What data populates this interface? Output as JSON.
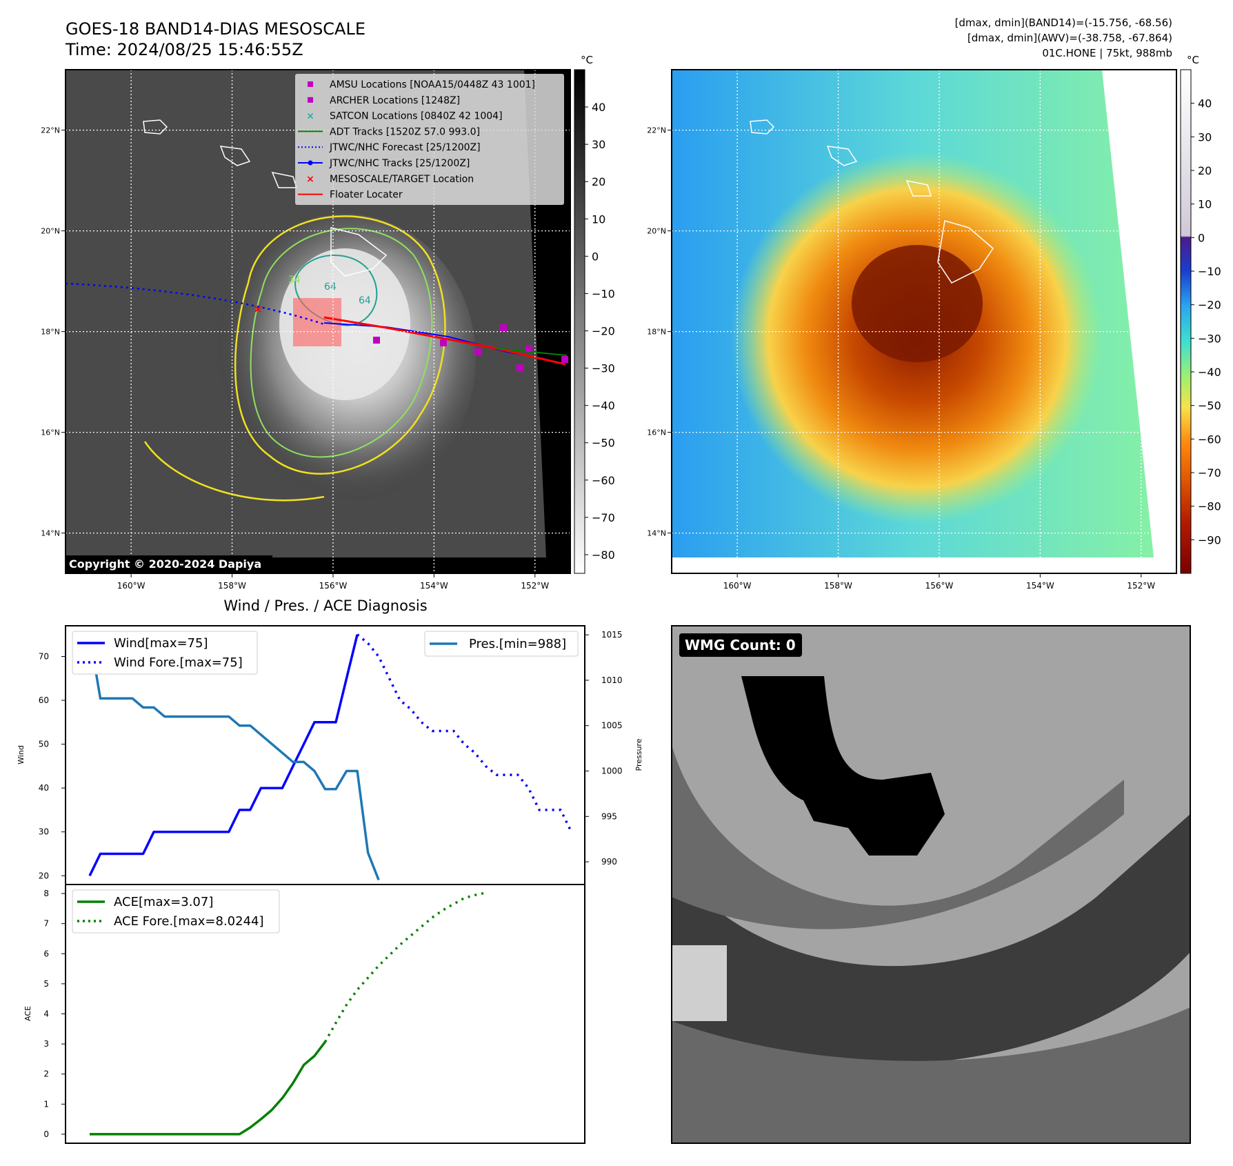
{
  "header": {
    "title": "GOES-18 BAND14-DIAS MESOSCALE",
    "time": "Time: 2024/08/25 15:46:55Z",
    "stats_band14": "[dmax, dmin](BAND14)=(-15.756, -68.56)",
    "stats_awv": "[dmax, dmin](AWV)=(-38.758, -67.864)",
    "storm": "01C.HONE | 75kt, 988mb"
  },
  "map": {
    "lon_range": [
      -161.3,
      -151.3
    ],
    "lat_range": [
      13.2,
      23.2
    ],
    "lon_ticks": [
      -160,
      -158,
      -156,
      -154,
      -152
    ],
    "lon_tick_labels": [
      "160°W",
      "158°W",
      "156°W",
      "154°W",
      "152°W"
    ],
    "lat_ticks": [
      14,
      16,
      18,
      20,
      22
    ],
    "lat_tick_labels": [
      "14°N",
      "16°N",
      "18°N",
      "20°N",
      "22°N"
    ],
    "copyright": "Copyright © 2020-2024 Dapiya",
    "contour_labels": [
      "64",
      "64",
      "34"
    ],
    "legend": [
      {
        "label": "AMSU Locations [NOAA15/0448Z 43 1001]",
        "color": "#c000c0",
        "marker": "square"
      },
      {
        "label": "ARCHER Locations [1248Z]",
        "color": "#c000c0",
        "marker": "square"
      },
      {
        "label": "SATCON Locations [0840Z 42 1004]",
        "color": "#20b0b0",
        "marker": "x"
      },
      {
        "label": "ADT Tracks [1520Z 57.0 993.0]",
        "color": "#008000",
        "marker": "line"
      },
      {
        "label": "JTWC/NHC Forecast [25/1200Z]",
        "color": "#0000ff",
        "marker": "dotted"
      },
      {
        "label": "JTWC/NHC Tracks [25/1200Z]",
        "color": "#0000ff",
        "marker": "line-dot"
      },
      {
        "label": "MESOSCALE/TARGET Location",
        "color": "#ff0000",
        "marker": "x"
      },
      {
        "label": "Floater Locater",
        "color": "#ff0000",
        "marker": "line"
      }
    ]
  },
  "colorbar_left": {
    "unit": "°C",
    "ticks": [
      40,
      30,
      20,
      10,
      0,
      -10,
      -20,
      -30,
      -40,
      -50,
      -60,
      -70,
      -80
    ],
    "tick_labels": [
      "40",
      "30",
      "20",
      "10",
      "0",
      "−10",
      "−20",
      "−30",
      "−40",
      "−50",
      "−60",
      "−70",
      "−80"
    ],
    "range": [
      -85,
      50
    ]
  },
  "colorbar_right": {
    "unit": "°C",
    "ticks": [
      40,
      30,
      20,
      10,
      0,
      -10,
      -20,
      -30,
      -40,
      -50,
      -60,
      -70,
      -80,
      -90
    ],
    "tick_labels": [
      "40",
      "30",
      "20",
      "10",
      "0",
      "−10",
      "−20",
      "−30",
      "−40",
      "−50",
      "−60",
      "−70",
      "−80",
      "−90"
    ],
    "range": [
      -100,
      50
    ]
  },
  "chart_data": [
    {
      "type": "line",
      "title": "Wind / Pres. / ACE Diagnosis",
      "ylabel": "Wind",
      "ylabel_right": "Pressure",
      "ylim": [
        18,
        77
      ],
      "ylim_right": [
        987.5,
        1016
      ],
      "yticks": [
        20,
        30,
        40,
        50,
        60,
        70
      ],
      "yticks_right": [
        990,
        995,
        1000,
        1005,
        1010,
        1015
      ],
      "x_count": 45,
      "legend_left": [
        "Wind[max=75]",
        "Wind Fore.[max=75]"
      ],
      "legend_right": [
        "Pres.[min=988]"
      ],
      "series": [
        {
          "name": "Wind[max=75]",
          "color": "#0000ff",
          "style": "solid",
          "x_start": 0,
          "values": [
            20,
            25,
            25,
            25,
            25,
            25,
            30,
            30,
            30,
            30,
            30,
            30,
            30,
            30,
            35,
            35,
            40,
            40,
            40,
            45,
            50,
            55,
            55,
            55,
            65,
            75
          ]
        },
        {
          "name": "Wind Fore.[max=75]",
          "color": "#0000ff",
          "style": "dotted",
          "x_start": 25,
          "values": [
            75,
            73,
            70,
            65,
            60,
            58,
            55,
            53,
            53,
            53,
            50,
            48,
            45,
            43,
            43,
            43,
            40,
            35,
            35,
            35,
            30
          ]
        },
        {
          "name": "Pres.[min=988]",
          "color": "#1f77b4",
          "style": "solid",
          "axis": "right",
          "x_start": 0,
          "values": [
            1015,
            1008,
            1008,
            1008,
            1008,
            1007,
            1007,
            1006,
            1006,
            1006,
            1006,
            1006,
            1006,
            1006,
            1005,
            1005,
            1004,
            1003,
            1002,
            1001,
            1001,
            1000,
            998,
            998,
            1000,
            1000,
            991,
            988
          ]
        }
      ]
    },
    {
      "type": "line",
      "ylabel": "ACE",
      "ylim": [
        -0.3,
        8.3
      ],
      "yticks": [
        0,
        1,
        2,
        3,
        4,
        5,
        6,
        7,
        8
      ],
      "x_count": 45,
      "legend_left": [
        "ACE[max=3.07]",
        "ACE Fore.[max=8.0244]"
      ],
      "series": [
        {
          "name": "ACE[max=3.07]",
          "color": "#008000",
          "style": "solid",
          "x_start": 0,
          "values": [
            0,
            0,
            0,
            0,
            0,
            0,
            0,
            0,
            0,
            0,
            0,
            0,
            0,
            0,
            0,
            0.22,
            0.5,
            0.8,
            1.2,
            1.7,
            2.3,
            2.6,
            3.07
          ]
        },
        {
          "name": "ACE Fore.[max=8.0244]",
          "color": "#008000",
          "style": "dotted",
          "x_start": 22,
          "values": [
            3.07,
            3.7,
            4.3,
            4.8,
            5.2,
            5.6,
            5.95,
            6.3,
            6.6,
            6.9,
            7.2,
            7.45,
            7.65,
            7.85,
            7.95,
            8.0244
          ]
        }
      ]
    }
  ],
  "wmg": {
    "label": "WMG Count: 0"
  }
}
